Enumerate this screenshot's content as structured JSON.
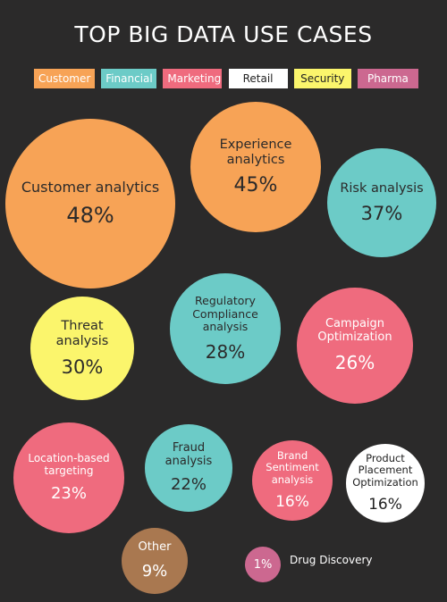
{
  "title": "TOP BIG DATA USE CASES",
  "colors": {
    "background": "#2b2a2a",
    "Customer": "#f7a356",
    "Financial": "#6ccbc7",
    "Marketing": "#ef6b7e",
    "Retail": "#ffffff",
    "Security": "#fbf56c",
    "Pharma": "#cc6890",
    "Other": "#a97850"
  },
  "legend": [
    "Customer",
    "Financial",
    "Marketing",
    "Retail",
    "Security",
    "Pharma"
  ],
  "chart_data": {
    "type": "bubble",
    "title": "TOP BIG DATA USE CASES",
    "legend_position": "top",
    "series": [
      {
        "label": "Customer analytics",
        "value": 48,
        "value_label": "48%",
        "category": "Customer"
      },
      {
        "label": "Experience analytics",
        "value": 45,
        "value_label": "45%",
        "category": "Customer"
      },
      {
        "label": "Risk analysis",
        "value": 37,
        "value_label": "37%",
        "category": "Financial"
      },
      {
        "label": "Threat analysis",
        "value": 30,
        "value_label": "30%",
        "category": "Security"
      },
      {
        "label": "Regulatory Compliance analysis",
        "value": 28,
        "value_label": "28%",
        "category": "Financial"
      },
      {
        "label": "Campaign Optimization",
        "value": 26,
        "value_label": "26%",
        "category": "Marketing"
      },
      {
        "label": "Location-based targeting",
        "value": 23,
        "value_label": "23%",
        "category": "Marketing"
      },
      {
        "label": "Fraud analysis",
        "value": 22,
        "value_label": "22%",
        "category": "Financial"
      },
      {
        "label": "Brand Sentiment analysis",
        "value": 16,
        "value_label": "16%",
        "category": "Marketing"
      },
      {
        "label": "Product Placement Optimization",
        "value": 16,
        "value_label": "16%",
        "category": "Retail"
      },
      {
        "label": "Other",
        "value": 9,
        "value_label": "9%",
        "category": "Other"
      },
      {
        "label": "Drug Discovery",
        "value": 1,
        "value_label": "1%",
        "category": "Pharma"
      }
    ]
  }
}
